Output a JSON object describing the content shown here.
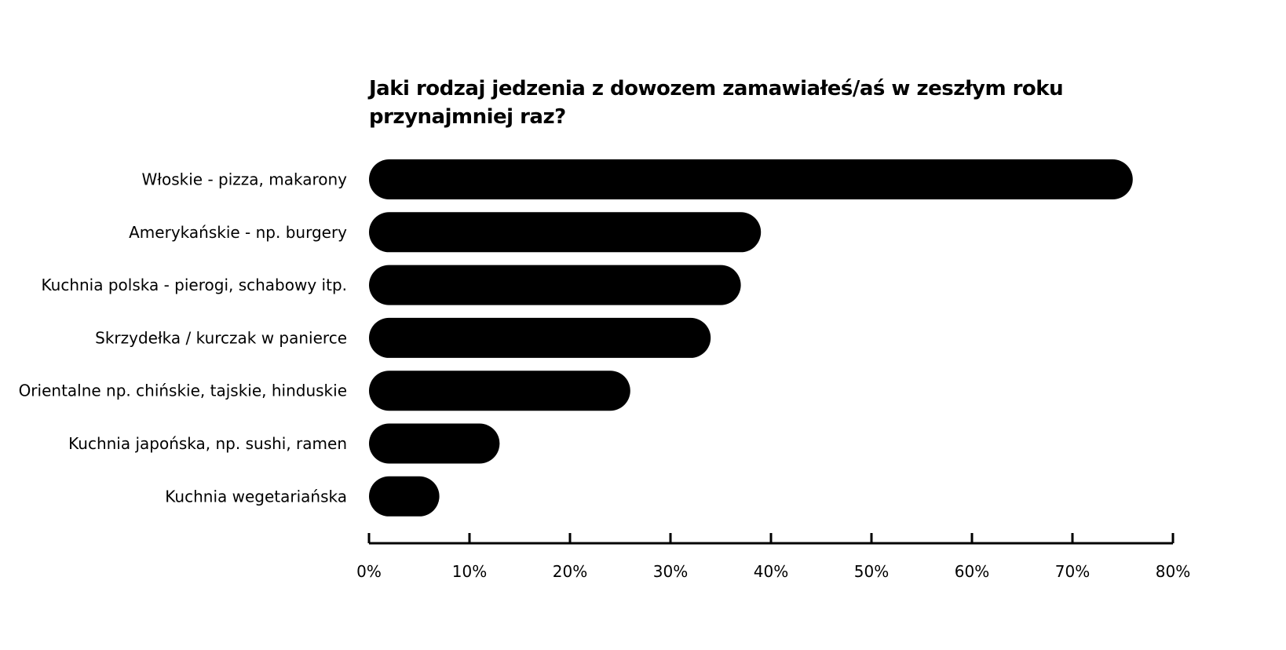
{
  "chart_data": {
    "type": "bar",
    "orientation": "horizontal",
    "title": "Jaki rodzaj jedzenia z dowozem zamawiałeś/aś w zeszłym roku przynajmniej raz?",
    "categories": [
      "Włoskie - pizza, makarony",
      "Amerykańskie - np. burgery",
      "Kuchnia polska - pierogi, schabowy itp.",
      "Skrzydełka / kurczak w panierce",
      "Orientalne np. chińskie, tajskie, hinduskie",
      "Kuchnia japońska, np. sushi, ramen",
      "Kuchnia wegetariańska"
    ],
    "values": [
      76,
      39,
      37,
      34,
      26,
      13,
      7
    ],
    "xlim": [
      0,
      80
    ],
    "ticks": [
      0,
      10,
      20,
      30,
      40,
      50,
      60,
      70,
      80
    ],
    "tick_labels": [
      "0%",
      "10%",
      "20%",
      "30%",
      "40%",
      "50%",
      "60%",
      "70%",
      "80%"
    ],
    "xlabel": "",
    "ylabel": "",
    "grid": false,
    "legend": "none",
    "bar_color": "#000000"
  }
}
